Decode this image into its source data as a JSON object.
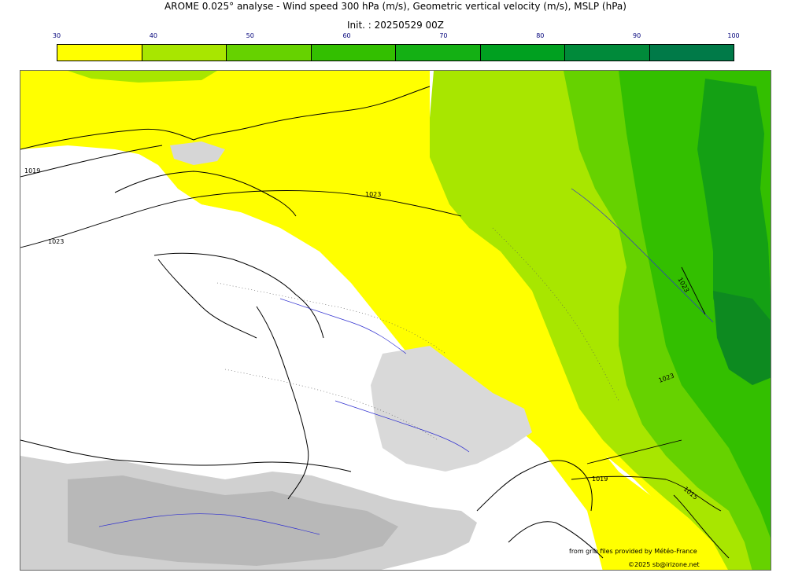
{
  "header": {
    "title": "AROME 0.025° analyse - Wind speed 300 hPa (m/s), Geometric vertical velocity (m/s), MSLP (hPa)",
    "subtitle": "Init. : 20250529 00Z"
  },
  "colorbar": {
    "ticks": [
      "30",
      "40",
      "50",
      "60",
      "70",
      "80",
      "90",
      "100"
    ],
    "colors": [
      "#ffff00",
      "#a8e600",
      "#66d200",
      "#33bf00",
      "#14b014",
      "#00a020",
      "#008a3a",
      "#007a48"
    ]
  },
  "map": {
    "isobars": [
      "1019",
      "1023",
      "1023",
      "1023",
      "1023",
      "1019",
      "1015"
    ],
    "colors": {
      "yellow": "#ffff00",
      "light_green": "#a8e600",
      "mid_green": "#66d200",
      "dark_green": "#33bf00",
      "darkest_green": "#14a014",
      "grey": "#d0d0d0",
      "dark_grey": "#b8b8b8",
      "coast": "#000000",
      "river": "#3030d0"
    }
  },
  "credits": {
    "line1": "from grib files provided by Météo-France",
    "line2": "©2025 sb@irizone.net"
  }
}
